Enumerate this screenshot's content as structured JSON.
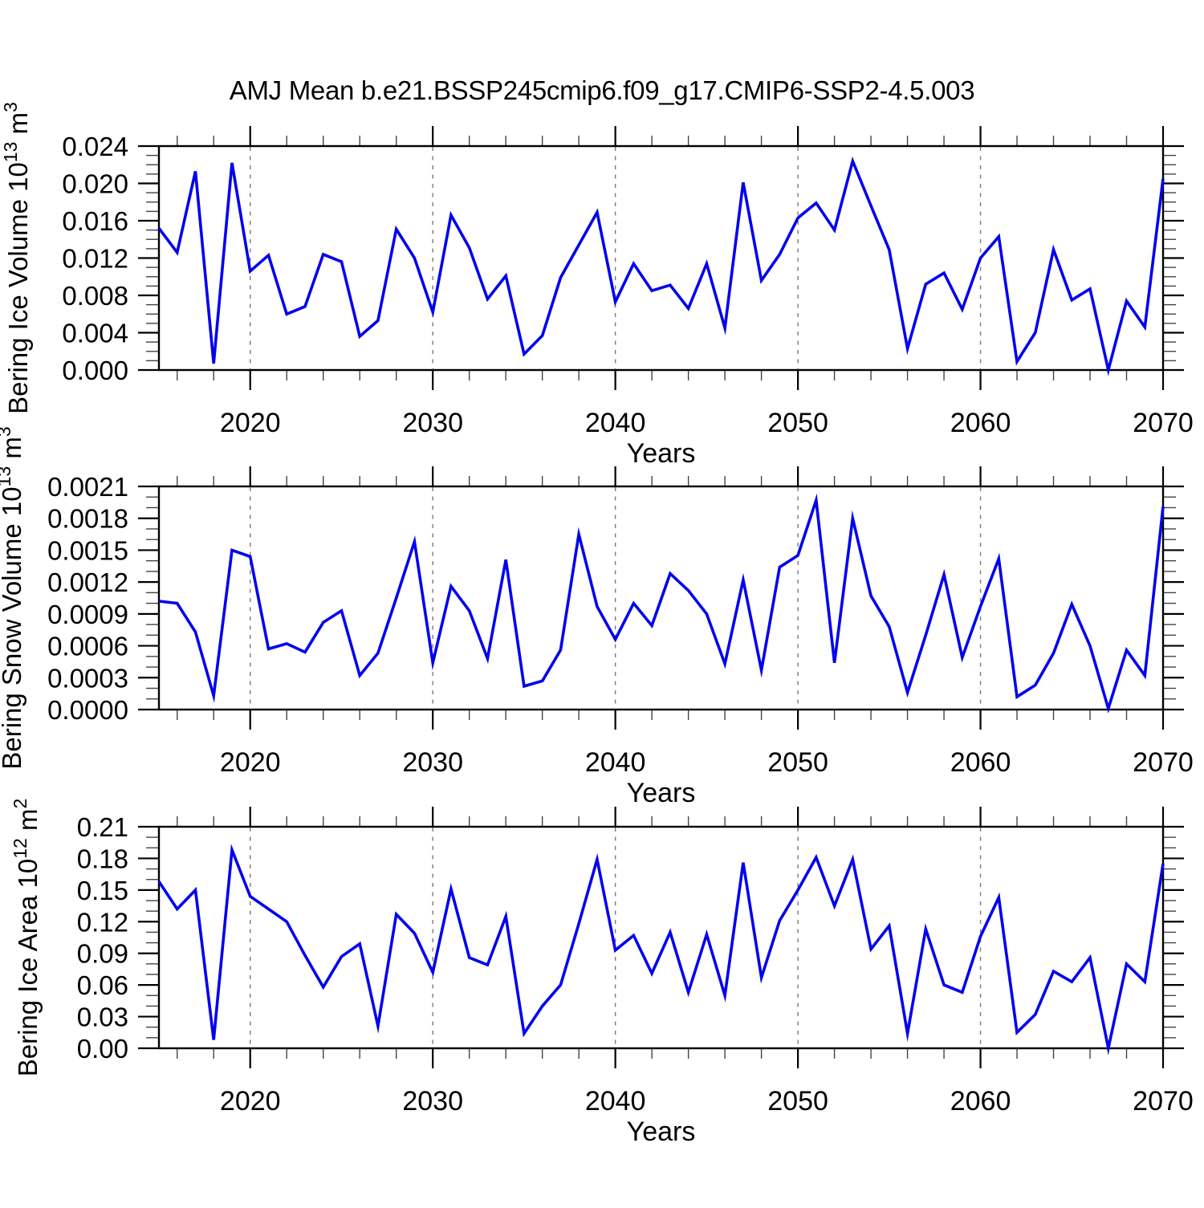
{
  "title": "AMJ Mean b.e21.BSSP245cmip6.f09_g17.CMIP6-SSP2-4.5.003",
  "colors": {
    "line": "#0202ee",
    "frame": "#000000",
    "tick_major": "#000000",
    "tick_minor": "#444444",
    "grid": "#7a7a7a",
    "background": "#ffffff",
    "text": "#000000"
  },
  "x_axis": {
    "label": "Years",
    "min": 2015,
    "max": 2070,
    "major_step": 10,
    "minor_step": 2,
    "tick_labels": [
      "2020",
      "2030",
      "2040",
      "2050",
      "2060",
      "2070"
    ],
    "grid_years": [
      2020,
      2030,
      2040,
      2050,
      2060
    ]
  },
  "years": [
    2015,
    2016,
    2017,
    2018,
    2019,
    2020,
    2021,
    2022,
    2023,
    2024,
    2025,
    2026,
    2027,
    2028,
    2029,
    2030,
    2031,
    2032,
    2033,
    2034,
    2035,
    2036,
    2037,
    2038,
    2039,
    2040,
    2041,
    2042,
    2043,
    2044,
    2045,
    2046,
    2047,
    2048,
    2049,
    2050,
    2051,
    2052,
    2053,
    2054,
    2055,
    2056,
    2057,
    2058,
    2059,
    2060,
    2061,
    2062,
    2063,
    2064,
    2065,
    2066,
    2067,
    2068,
    2069,
    2070
  ],
  "chart_data": [
    {
      "type": "line",
      "panel": "bering-ice-volume",
      "ylabel": "Bering Ice Volume 10^13 m^3",
      "ylabel_segments": [
        {
          "t": "Bering Ice Volume 10"
        },
        {
          "t": "13",
          "sup": true
        },
        {
          "t": " m"
        },
        {
          "t": "3",
          "sup": true
        }
      ],
      "xlabel": "Years",
      "ylim": [
        0,
        0.024
      ],
      "ytick_major": 0.004,
      "ytick_minor": 0.001,
      "ytick_decimals": 3,
      "grid": "x-dashed",
      "legend": "none",
      "values": [
        0.0152,
        0.0126,
        0.0213,
        0.0007,
        0.0222,
        0.0106,
        0.0123,
        0.006,
        0.0068,
        0.0124,
        0.0116,
        0.0036,
        0.0053,
        0.0151,
        0.012,
        0.0062,
        0.0166,
        0.0131,
        0.0076,
        0.0101,
        0.0017,
        0.0037,
        0.0099,
        0.0134,
        0.0169,
        0.0073,
        0.0114,
        0.0085,
        0.0091,
        0.0066,
        0.0114,
        0.0045,
        0.0201,
        0.0096,
        0.0124,
        0.0163,
        0.0179,
        0.015,
        0.0224,
        0.0176,
        0.0129,
        0.0023,
        0.0092,
        0.0104,
        0.0065,
        0.012,
        0.0143,
        0.0009,
        0.004,
        0.0129,
        0.0075,
        0.0087,
        0.0,
        0.0074,
        0.0046,
        0.0205
      ]
    },
    {
      "type": "line",
      "panel": "bering-snow-volume",
      "ylabel": "Bering Snow Volume 10^13 m^3",
      "ylabel_segments": [
        {
          "t": "Bering Snow Volume 10"
        },
        {
          "t": "13",
          "sup": true
        },
        {
          "t": " m"
        },
        {
          "t": "3",
          "sup": true
        }
      ],
      "xlabel": "Years",
      "ylim": [
        0,
        0.0021
      ],
      "ytick_major": 0.0003,
      "ytick_minor": 0.0001,
      "ytick_decimals": 4,
      "grid": "x-dashed",
      "legend": "none",
      "values": [
        0.00102,
        0.001,
        0.00073,
        0.00013,
        0.0015,
        0.00144,
        0.00057,
        0.00062,
        0.00054,
        0.00082,
        0.00093,
        0.00032,
        0.00053,
        0.00105,
        0.00158,
        0.00044,
        0.00116,
        0.00093,
        0.00048,
        0.00141,
        0.00022,
        0.00027,
        0.00056,
        0.00165,
        0.00097,
        0.00066,
        0.001,
        0.00079,
        0.00128,
        0.00112,
        0.0009,
        0.00043,
        0.00122,
        0.00037,
        0.00134,
        0.00145,
        0.00197,
        0.00044,
        0.0018,
        0.00107,
        0.00078,
        0.00016,
        0.0007,
        0.00127,
        0.00049,
        0.00097,
        0.00142,
        0.00012,
        0.00023,
        0.00053,
        0.00099,
        0.0006,
        1e-05,
        0.00056,
        0.00032,
        0.00191
      ]
    },
    {
      "type": "line",
      "panel": "bering-ice-area",
      "ylabel": "Bering Ice Area 10^12 m^2",
      "ylabel_segments": [
        {
          "t": "Bering Ice Area 10"
        },
        {
          "t": "12",
          "sup": true
        },
        {
          "t": " m"
        },
        {
          "t": "2",
          "sup": true
        }
      ],
      "xlabel": "Years",
      "ylim": [
        0,
        0.21
      ],
      "ytick_major": 0.03,
      "ytick_minor": 0.01,
      "ytick_decimals": 2,
      "grid": "x-dashed",
      "legend": "none",
      "values": [
        0.158,
        0.132,
        0.15,
        0.008,
        0.188,
        0.144,
        0.132,
        0.12,
        0.088,
        0.058,
        0.087,
        0.099,
        0.021,
        0.127,
        0.109,
        0.072,
        0.151,
        0.086,
        0.079,
        0.125,
        0.014,
        0.04,
        0.06,
        0.118,
        0.179,
        0.093,
        0.107,
        0.071,
        0.11,
        0.053,
        0.108,
        0.05,
        0.176,
        0.067,
        0.121,
        0.15,
        0.181,
        0.135,
        0.179,
        0.094,
        0.116,
        0.014,
        0.113,
        0.06,
        0.053,
        0.106,
        0.143,
        0.015,
        0.032,
        0.073,
        0.063,
        0.086,
        0.0,
        0.08,
        0.063,
        0.175
      ]
    }
  ]
}
